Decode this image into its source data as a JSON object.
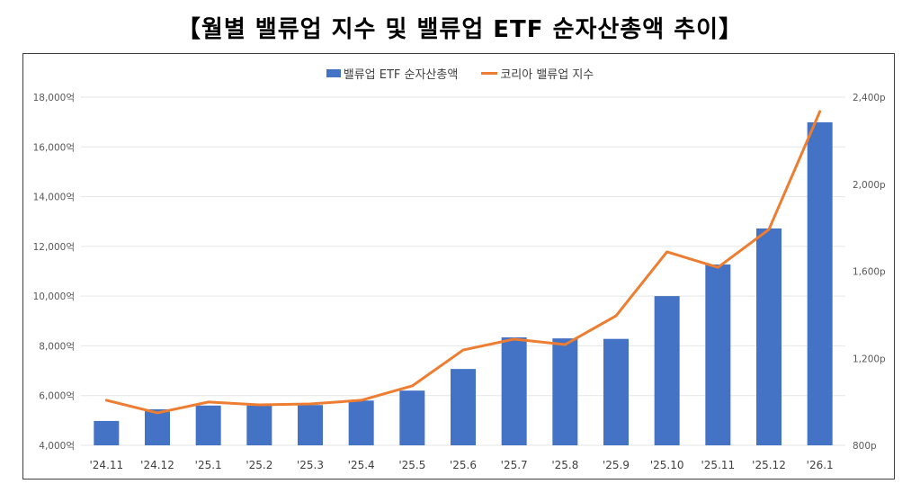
{
  "chart_data": {
    "type": "bar+line",
    "title": "【월별 밸류업 지수 및 밸류업 ETF 순자산총액 추이】",
    "categories": [
      "'24.11",
      "'24.12",
      "'25.1",
      "'25.2",
      "'25.3",
      "'25.4",
      "'25.5",
      "'25.6",
      "'25.7",
      "'25.8",
      "'25.9",
      "'25.10",
      "'25.11",
      "'25.12",
      "'26.1"
    ],
    "series": [
      {
        "name": "밸류업 ETF 순자산총액",
        "type": "bar",
        "axis": "left",
        "color": "#4472C4",
        "values": [
          4980,
          5450,
          5600,
          5600,
          5620,
          5800,
          6200,
          7070,
          8340,
          8300,
          8280,
          10000,
          11270,
          12720,
          16990
        ]
      },
      {
        "name": "코리아 밸류업 지수",
        "type": "line",
        "axis": "right",
        "color": "#ED7D31",
        "values": [
          1007,
          949,
          999,
          986,
          990,
          1007,
          1073,
          1238,
          1288,
          1263,
          1395,
          1689,
          1618,
          1792,
          2334
        ]
      }
    ],
    "left_axis": {
      "range": [
        4000,
        18000
      ],
      "ticks": [
        4000,
        6000,
        8000,
        10000,
        12000,
        14000,
        16000,
        18000
      ],
      "tick_labels": [
        "4,000억",
        "6,000억",
        "8,000억",
        "10,000억",
        "12,000억",
        "14,000억",
        "16,000억",
        "18,000억"
      ]
    },
    "right_axis": {
      "range": [
        800,
        2400
      ],
      "ticks": [
        800,
        1200,
        1600,
        2000,
        2400
      ],
      "tick_labels": [
        "800p",
        "1,200p",
        "1,600p",
        "2,000p",
        "2,400p"
      ]
    },
    "grid": true,
    "legend_position": "top-center",
    "xlabel": "",
    "ylabel": ""
  }
}
